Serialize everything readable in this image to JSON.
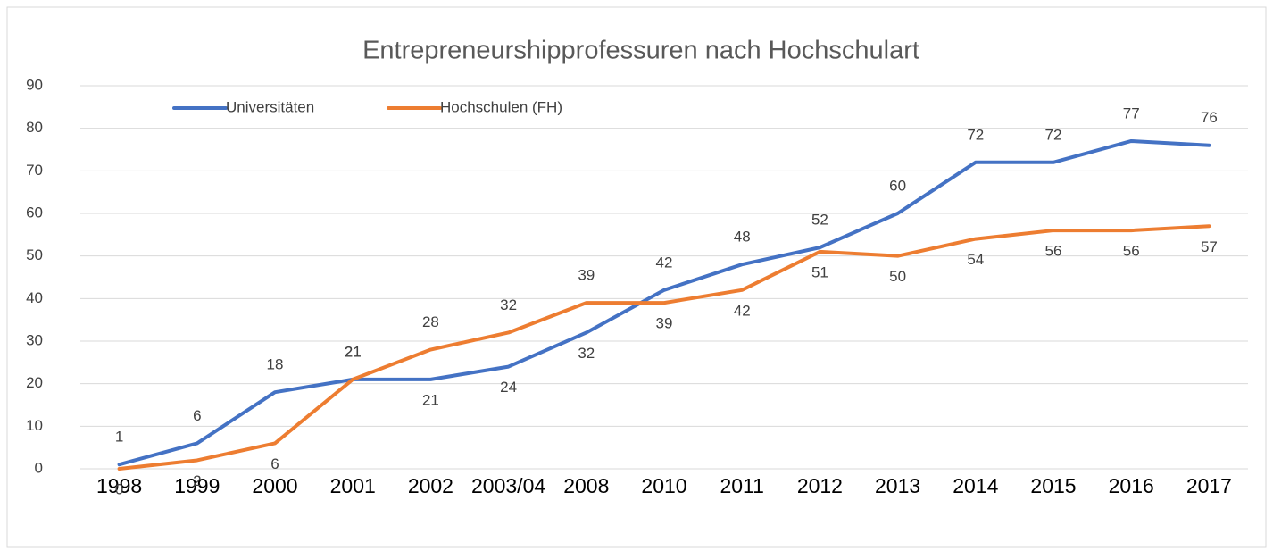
{
  "chart_data": {
    "type": "line",
    "title": "Entrepreneurshipprofessuren nach Hochschulart",
    "categories": [
      "1998",
      "1999",
      "2000",
      "2001",
      "2002",
      "2003/04",
      "2008",
      "2010",
      "2011",
      "2012",
      "2013",
      "2014",
      "2015",
      "2016",
      "2017"
    ],
    "series": [
      {
        "name": "Universitäten",
        "color": "#4472c4",
        "values": [
          1,
          6,
          18,
          21,
          21,
          24,
          32,
          42,
          48,
          52,
          60,
          72,
          72,
          77,
          76
        ]
      },
      {
        "name": "Hochschulen (FH)",
        "color": "#ed7d31",
        "values": [
          0,
          2,
          6,
          21,
          28,
          32,
          39,
          39,
          42,
          51,
          50,
          54,
          56,
          56,
          57
        ]
      }
    ],
    "ylim": [
      0,
      90
    ],
    "yticks": [
      0,
      10,
      20,
      30,
      40,
      50,
      60,
      70,
      80,
      90
    ],
    "grid": true,
    "legend": "top-left"
  }
}
